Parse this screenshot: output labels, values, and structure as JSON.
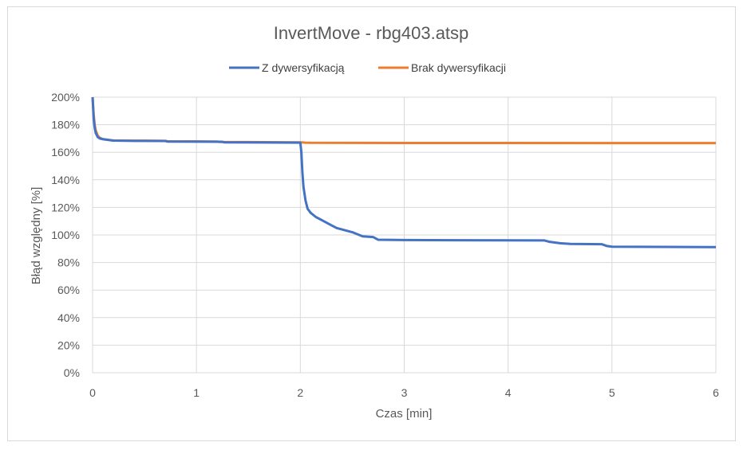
{
  "chart_data": {
    "type": "line",
    "title": "InvertMove - rbg403.atsp",
    "xlabel": "Czas [min]",
    "ylabel": "Błąd względny [%]",
    "xlim": [
      0,
      6
    ],
    "ylim": [
      0,
      200
    ],
    "x_ticks": [
      0,
      1,
      2,
      3,
      4,
      5,
      6
    ],
    "x_tick_labels": [
      "0",
      "1",
      "2",
      "3",
      "4",
      "5",
      "6"
    ],
    "y_ticks": [
      0,
      20,
      40,
      60,
      80,
      100,
      120,
      140,
      160,
      180,
      200
    ],
    "y_tick_labels": [
      "0%",
      "20%",
      "40%",
      "60%",
      "80%",
      "100%",
      "120%",
      "140%",
      "160%",
      "180%",
      "200%"
    ],
    "grid": true,
    "legend_position": "top",
    "series": [
      {
        "name": "Z dywersyfikacją",
        "color": "#4472C4",
        "x": [
          0,
          0.01,
          0.02,
          0.03,
          0.05,
          0.07,
          0.1,
          0.15,
          0.2,
          0.4,
          0.7,
          0.72,
          1.0,
          1.25,
          1.27,
          1.6,
          2.0,
          2.01,
          2.02,
          2.03,
          2.05,
          2.07,
          2.1,
          2.15,
          2.2,
          2.25,
          2.3,
          2.35,
          2.4,
          2.45,
          2.5,
          2.55,
          2.6,
          2.7,
          2.75,
          3.0,
          3.5,
          4.0,
          4.35,
          4.4,
          4.5,
          4.6,
          4.9,
          4.95,
          5.0,
          5.5,
          6.0
        ],
        "y": [
          200,
          185,
          178,
          174,
          171,
          170,
          169.5,
          169,
          168.5,
          168.3,
          168.2,
          167.8,
          167.7,
          167.6,
          167.2,
          167.1,
          167,
          160,
          145,
          135,
          125,
          119,
          116,
          113,
          111,
          109,
          107,
          105,
          104,
          103,
          102,
          100.5,
          99,
          98.5,
          96.5,
          96.3,
          96.2,
          96.1,
          96,
          95,
          94,
          93.5,
          93.3,
          92,
          91.5,
          91.3,
          91.2
        ]
      },
      {
        "name": "Brak dywersyfikacji",
        "color": "#ED7D31",
        "x": [
          0,
          0.01,
          0.02,
          0.03,
          0.05,
          0.07,
          0.1,
          0.15,
          0.2,
          0.5,
          0.7,
          0.72,
          1.0,
          1.2,
          1.22,
          1.5,
          2.0,
          2.05,
          2.1,
          3.0,
          4.0,
          5.0,
          6.0
        ],
        "y": [
          200,
          188,
          180,
          176,
          172,
          170.5,
          169.5,
          169,
          168.5,
          168.4,
          168.3,
          168,
          167.9,
          167.8,
          167.5,
          167.4,
          167.2,
          167,
          166.9,
          166.8,
          166.8,
          166.7,
          166.7
        ]
      }
    ]
  }
}
